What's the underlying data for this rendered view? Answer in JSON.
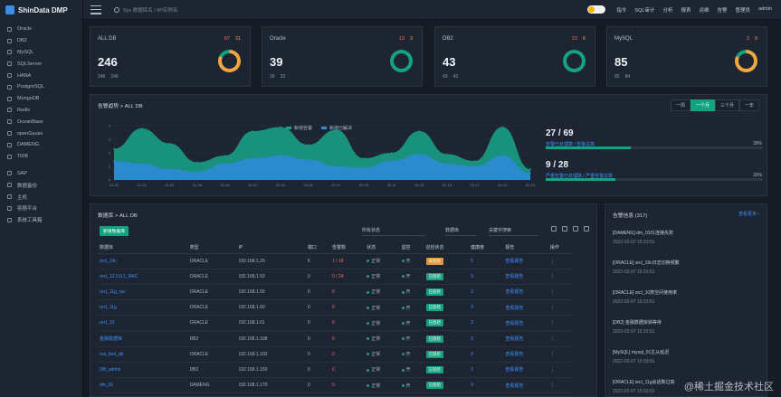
{
  "app": {
    "title": "ShinData DMP"
  },
  "sidebar": {
    "items": [
      {
        "label": "Oracle"
      },
      {
        "label": "DB2"
      },
      {
        "label": "MySQL"
      },
      {
        "label": "SQLServer"
      },
      {
        "label": "HANA"
      },
      {
        "label": "PostgreSQL"
      },
      {
        "label": "MongoDB"
      },
      {
        "label": "Redis"
      },
      {
        "label": "OceanBase"
      },
      {
        "label": "openGauss"
      },
      {
        "label": "DAMENG"
      },
      {
        "label": "TiDB"
      },
      {
        "label": "SAP"
      },
      {
        "label": "数据备份"
      },
      {
        "label": "主机"
      },
      {
        "label": "容器平台"
      },
      {
        "label": "系统工具箱"
      }
    ]
  },
  "topbar": {
    "search_placeholder": "Sys 数据库名 / IP/实例名",
    "links": [
      "指令",
      "SQL审计",
      "分析",
      "报表",
      "运维",
      "告警",
      "管理员",
      "admin"
    ]
  },
  "cards": [
    {
      "name": "ALL DB",
      "alert_red": "67",
      "alert_orange": "31",
      "count": "246",
      "sub_a": "246",
      "sub_b": "246",
      "ring_color": "#f3a541"
    },
    {
      "name": "Oracle",
      "alert_red": "13",
      "alert_orange": "3",
      "count": "39",
      "sub_a": "39",
      "sub_b": "33",
      "ring_color": "#14a37f"
    },
    {
      "name": "DB2",
      "alert_red": "23",
      "alert_orange": "6",
      "count": "43",
      "sub_a": "43",
      "sub_b": "43",
      "ring_color": "#14a37f"
    },
    {
      "name": "MySQL",
      "alert_red": "3",
      "alert_orange": "0",
      "count": "85",
      "sub_a": "85",
      "sub_b": "84",
      "ring_color": "#f3a541"
    }
  ],
  "trend": {
    "title": "告警趋势 > ALL DB",
    "tabs": [
      "一周",
      "一个月",
      "三个月",
      "一年"
    ],
    "active_tab": "一个月",
    "legend": [
      "新增告警",
      "新增已解决"
    ],
    "stats": [
      {
        "value": "27 / 69",
        "label": "告警已处理数 / 告警总数",
        "pct": "39%",
        "fill": 39
      },
      {
        "value": "9 / 28",
        "label": "严重告警已处理数 / 严重告警总数",
        "pct": "32%",
        "fill": 32
      }
    ]
  },
  "chart_data": {
    "type": "area",
    "title": "告警趋势 > ALL DB",
    "x": [
      "01-22",
      "01-24",
      "01-26",
      "01-28",
      "01-30",
      "02-01",
      "02-03",
      "02-05",
      "02-07",
      "02-09",
      "02-11",
      "02-13",
      "02-15",
      "02-17",
      "02-19",
      "02-21"
    ],
    "ylim": [
      0,
      4
    ],
    "series": [
      {
        "name": "新增告警",
        "values": [
          2.3,
          3.8,
          2.7,
          1.3,
          1.8,
          3.6,
          3.9,
          2.6,
          3.7,
          1.6,
          2.0,
          3.6,
          1.9,
          1.4,
          3.9,
          0.8
        ]
      },
      {
        "name": "新增已解决",
        "values": [
          1.4,
          1.2,
          0.8,
          0.6,
          1.2,
          1.6,
          1.8,
          1.5,
          1.0,
          0.9,
          1.4,
          1.9,
          1.2,
          1.0,
          1.8,
          0.5
        ]
      }
    ]
  },
  "db_list": {
    "title": "数据库 > ALL DB",
    "add_button": "新增数据库",
    "filter_a": "所有状态",
    "filter_b": "数据库",
    "filter_placeholder": "关键字搜索",
    "columns": [
      "数据库",
      "类型",
      "IP",
      "端口",
      "告警数",
      "状态",
      "监控",
      "巡检状态",
      "健康度",
      "报告",
      "操作"
    ],
    "rows": [
      {
        "name": "orcl_19c",
        "type": "ORACLE",
        "ip": "192.168.1.20",
        "port": "5",
        "alerts": "1 / 18",
        "status": "正常",
        "monitor": "开",
        "check": "未巡检",
        "check_color": "orange",
        "health": "5",
        "report": "查看报告",
        "op": "⋮"
      },
      {
        "name": "orcl_12.2.0.1_RAC",
        "type": "ORACLE",
        "ip": "192.168.1.53",
        "port": "0",
        "alerts": "0 / 24",
        "status": "正常",
        "monitor": "开",
        "check": "已巡检",
        "check_color": "green",
        "health": "3",
        "report": "查看报告",
        "op": "⋮"
      },
      {
        "name": "orcl_11g_rac",
        "type": "ORACLE",
        "ip": "192.168.1.55",
        "port": "0",
        "alerts": "0",
        "status": "正常",
        "monitor": "开",
        "check": "已巡检",
        "check_color": "green",
        "health": "3",
        "report": "查看报告",
        "op": "⋮"
      },
      {
        "name": "orcl_11g",
        "type": "ORACLE",
        "ip": "192.168.1.60",
        "port": "0",
        "alerts": "0",
        "status": "正常",
        "monitor": "开",
        "check": "已巡检",
        "check_color": "green",
        "health": "3",
        "report": "查看报告",
        "op": "⋮"
      },
      {
        "name": "orcl_10",
        "type": "ORACLE",
        "ip": "192.168.1.61",
        "port": "0",
        "alerts": "0",
        "status": "正常",
        "monitor": "开",
        "check": "已巡检",
        "check_color": "green",
        "health": "3",
        "report": "查看报告",
        "op": "⋮"
      },
      {
        "name": "金融数据库",
        "type": "DB2",
        "ip": "192.168.1.108",
        "port": "0",
        "alerts": "0",
        "status": "正常",
        "monitor": "开",
        "check": "已巡检",
        "check_color": "green",
        "health": "3",
        "report": "查看报告",
        "op": "⋮"
      },
      {
        "name": "ora_test_db",
        "type": "ORACLE",
        "ip": "192.168.1.102",
        "port": "0",
        "alerts": "0",
        "status": "正常",
        "monitor": "开",
        "check": "已巡检",
        "check_color": "green",
        "health": "3",
        "report": "查看报告",
        "op": "⋮"
      },
      {
        "name": "DB_admin",
        "type": "DB2",
        "ip": "192.168.1.150",
        "port": "0",
        "alerts": "0",
        "status": "正常",
        "monitor": "开",
        "check": "已巡检",
        "check_color": "green",
        "health": "3",
        "report": "查看报告",
        "op": "⋮"
      },
      {
        "name": "dm_01",
        "type": "DAMENG",
        "ip": "192.168.1.170",
        "port": "0",
        "alerts": "0",
        "status": "正常",
        "monitor": "开",
        "check": "已巡检",
        "check_color": "green",
        "health": "3",
        "report": "查看报告",
        "op": "⋮"
      }
    ]
  },
  "news": {
    "title": "告警信息 (317)",
    "more": "查看更多 ›",
    "items": [
      {
        "text": "[DAMENG] dm_0101连接失败",
        "date": "2022-02-07 15:33:51"
      },
      {
        "text": "[ORACLE] orcl_19c日志切换频繁",
        "date": "2022-02-07 15:33:51"
      },
      {
        "text": "[ORACLE] orcl_10表空间使用率",
        "date": "2022-02-07 15:33:51"
      },
      {
        "text": "[DB2] 金融数据库锁等待",
        "date": "2022-02-07 15:33:51"
      },
      {
        "text": "[MySQL] mysql_01主从延迟",
        "date": "2022-02-07 15:33:51"
      },
      {
        "text": "[ORACLE] orcl_11g会话数过高",
        "date": "2022-02-07 15:33:51"
      }
    ]
  },
  "watermark": "@稀土掘金技术社区"
}
